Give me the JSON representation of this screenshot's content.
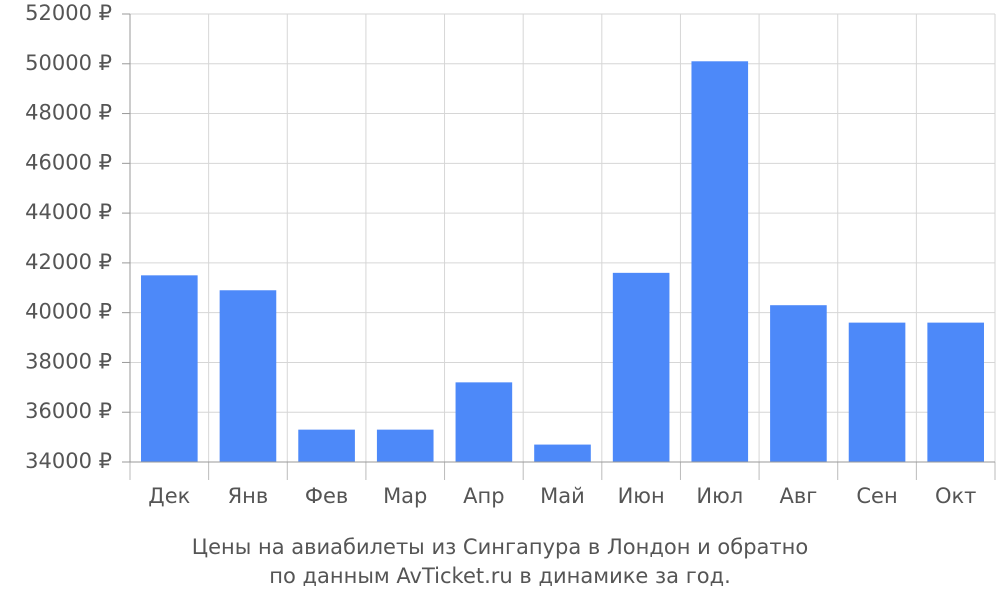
{
  "chart_data": {
    "type": "bar",
    "title": "Цены на авиабилеты из Сингапура в Лондон и обратно",
    "subtitle": "по данным AvTicket.ru в динамике за год.",
    "categories": [
      "Дек",
      "Янв",
      "Фев",
      "Мар",
      "Апр",
      "Май",
      "Июн",
      "Июл",
      "Авг",
      "Сен",
      "Окт"
    ],
    "values": [
      41500,
      40900,
      35300,
      35300,
      37200,
      34700,
      41600,
      50100,
      40300,
      39600,
      39600
    ],
    "color": "#4d89f9",
    "ylim": [
      34000,
      52000
    ],
    "yticks": [
      {
        "value": 34000,
        "label": "34000 ₽"
      },
      {
        "value": 36000,
        "label": "36000 ₽"
      },
      {
        "value": 38000,
        "label": "38000 ₽"
      },
      {
        "value": 40000,
        "label": "40000 ₽"
      },
      {
        "value": 42000,
        "label": "42000 ₽"
      },
      {
        "value": 44000,
        "label": "44000 ₽"
      },
      {
        "value": 46000,
        "label": "46000 ₽"
      },
      {
        "value": 48000,
        "label": "48000 ₽"
      },
      {
        "value": 50000,
        "label": "50000 ₽"
      },
      {
        "value": 52000,
        "label": "52000 ₽"
      }
    ],
    "grid": true
  }
}
